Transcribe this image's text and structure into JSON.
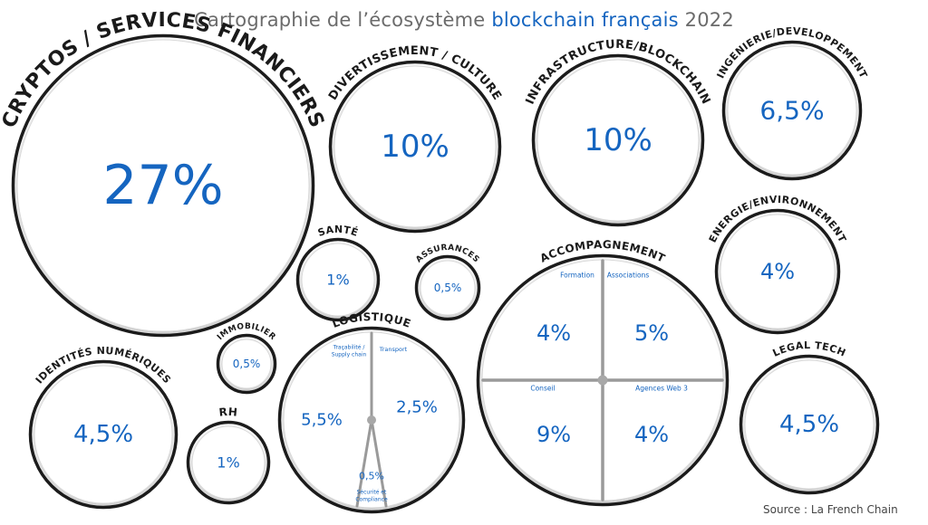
{
  "header": {
    "title_prefix": "Cartographie de l’écosystème ",
    "title_highlight": "blockchain français",
    "title_suffix": " 2022"
  },
  "footer": {
    "source": "Source : La French Chain"
  },
  "colors": {
    "accent": "#1565c0",
    "ring": "#1c1c1c",
    "label": "#1a1a1a",
    "muted": "#6b6b6b"
  },
  "chart_data": {
    "type": "bubble",
    "title": "Cartographie de l’écosystème blockchain français 2022",
    "unit": "%",
    "categories": [
      {
        "name": "CRYPTOS / SERVICES FINANCIERS",
        "value": "27%"
      },
      {
        "name": "DIVERTISSEMENT / CULTURE",
        "value": "10%"
      },
      {
        "name": "INFRASTRUCTURE/BLOCKCHAIN",
        "value": "10%"
      },
      {
        "name": "INGENIERIE/DEVELOPPEMENT",
        "value": "6,5%"
      },
      {
        "name": "ENERGIE/ENVIRONNEMENT",
        "value": "4%"
      },
      {
        "name": "SANTÉ",
        "value": "1%"
      },
      {
        "name": "ASSURANCES",
        "value": "0,5%"
      },
      {
        "name": "IMMOBILIER",
        "value": "0,5%"
      },
      {
        "name": "IDENTITÉS NUMÉRIQUES",
        "value": "4,5%"
      },
      {
        "name": "RH",
        "value": "1%"
      },
      {
        "name": "LEGAL TECH",
        "value": "4,5%"
      },
      {
        "name": "LOGISTIQUE",
        "subcategories": [
          {
            "name": "Traçabilité / Supply chain",
            "value": "5,5%"
          },
          {
            "name": "Transport",
            "value": "2,5%"
          },
          {
            "name": "Sécurité et Compliance",
            "value": "0,5%"
          }
        ]
      },
      {
        "name": "ACCOMPAGNEMENT",
        "subcategories": [
          {
            "name": "Formation",
            "value": "4%"
          },
          {
            "name": "Associations",
            "value": "5%"
          },
          {
            "name": "Conseil",
            "value": "9%"
          },
          {
            "name": "Agences Web 3",
            "value": "4%"
          }
        ]
      }
    ]
  }
}
